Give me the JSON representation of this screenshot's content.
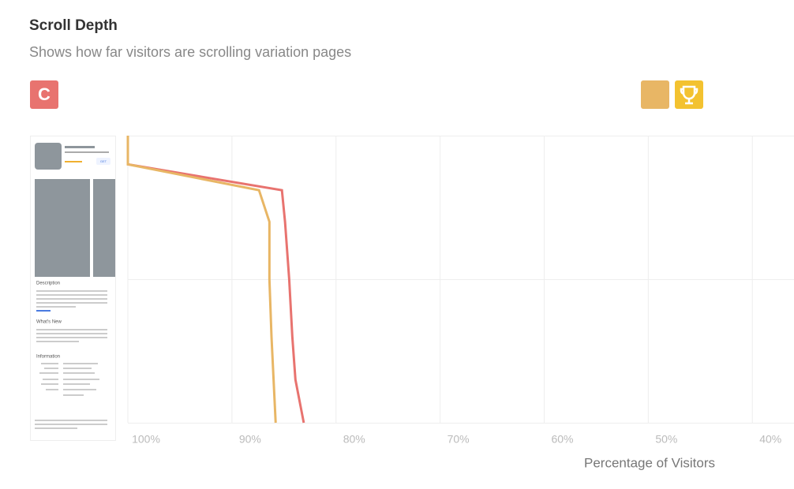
{
  "header": {
    "title": "Scroll Depth",
    "subtitle": "Shows how far visitors are scrolling variation pages",
    "variation_label": "C"
  },
  "thumbnail": {
    "button": "GET",
    "sections": [
      "Description",
      "What's New",
      "Information"
    ]
  },
  "chart_data": {
    "type": "line",
    "x_label": "Percentage of Visitors",
    "xlim": [
      100,
      36
    ],
    "xticks": [
      {
        "value": 100,
        "label": "100%"
      },
      {
        "value": 90,
        "label": "90%"
      },
      {
        "value": 80,
        "label": "80%"
      },
      {
        "value": 70,
        "label": "70%"
      },
      {
        "value": 60,
        "label": "60%"
      },
      {
        "value": 50,
        "label": "50%"
      },
      {
        "value": 40,
        "label": "40%"
      }
    ],
    "depth": [
      0,
      10,
      19,
      30,
      50,
      70,
      85,
      100
    ],
    "depth_lim": [
      0,
      100
    ],
    "grid": true,
    "series": [
      {
        "color": "#e8736f",
        "values": [
          100,
          100,
          85.2,
          84.9,
          84.5,
          84.2,
          83.9,
          83.1
        ]
      },
      {
        "color": "#e8b665",
        "values": [
          100,
          100,
          87.4,
          86.4,
          86.4,
          86.2,
          86,
          85.8
        ]
      }
    ]
  }
}
